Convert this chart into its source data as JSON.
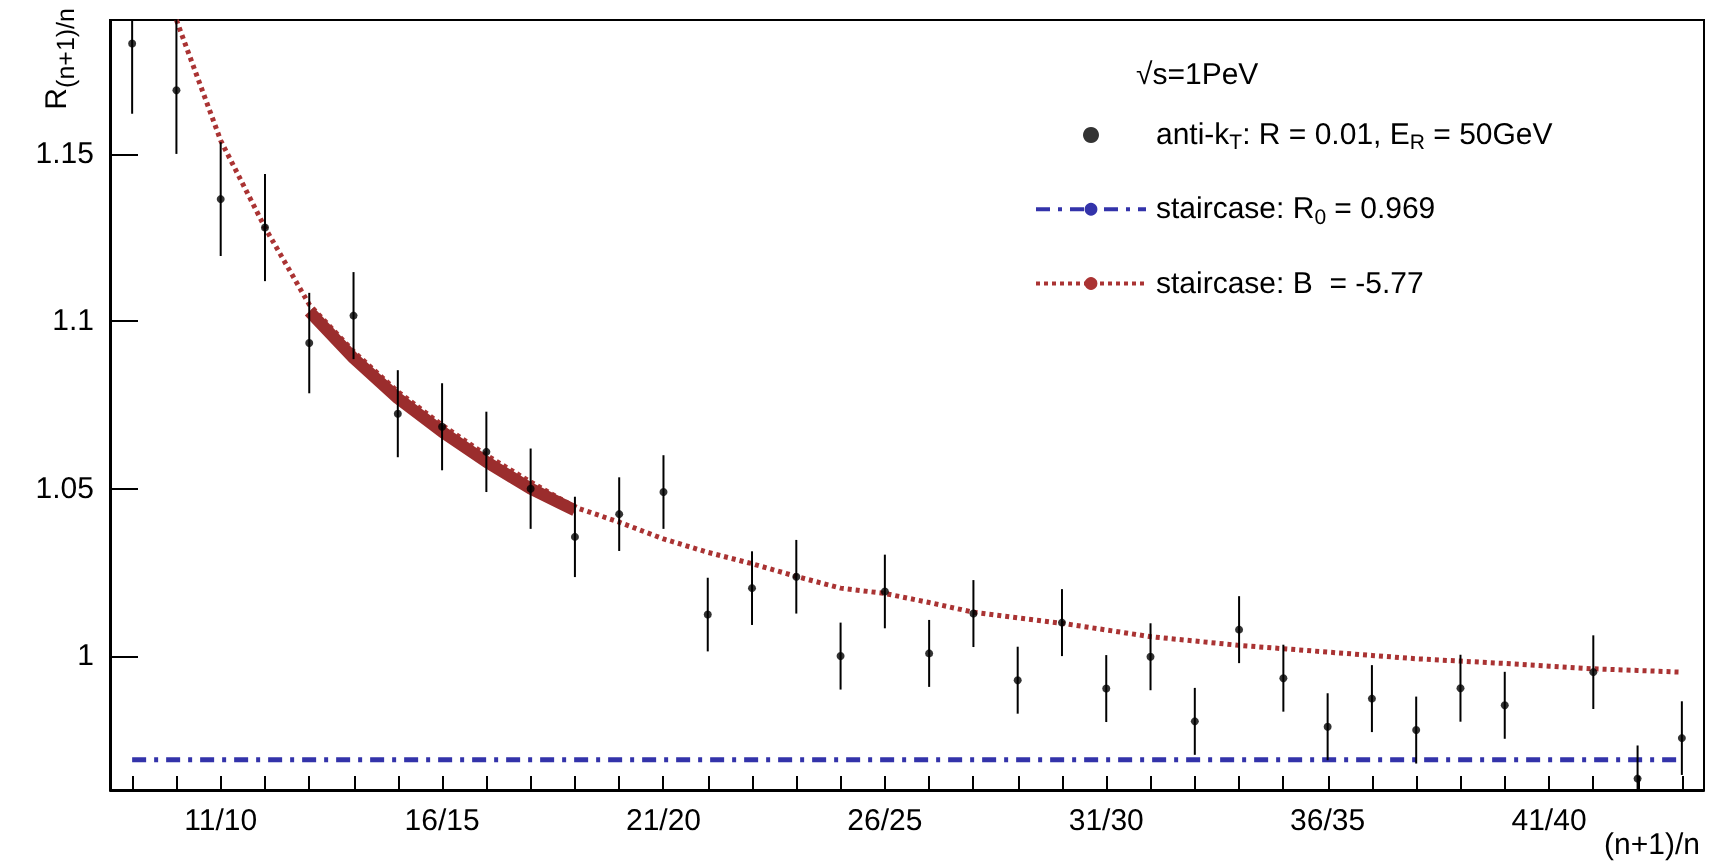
{
  "chart_data": {
    "type": "scatter",
    "xlabel": "(n+1)/n",
    "ylabel": "R$_{(n+1)/n}$",
    "legend_title": "√s=1PeV",
    "legend": "top right",
    "grid": false,
    "categories": [
      null,
      null,
      "11/10",
      null,
      null,
      null,
      null,
      "16/15",
      null,
      null,
      null,
      null,
      "21/20",
      null,
      null,
      null,
      null,
      "26/25",
      null,
      null,
      null,
      null,
      "31/30",
      null,
      null,
      null,
      null,
      "36/35",
      null,
      null,
      null,
      null,
      "41/40",
      null,
      null,
      null
    ],
    "ylim": [
      0.96,
      1.19
    ],
    "yticks": [
      1,
      1.05,
      1.1,
      1.15
    ],
    "series": [
      {
        "name": "anti-k$_{T}$: R = 0.01, E$_{R}$ = 50GeV",
        "color": "#000000",
        "marker": "circle",
        "values": [
          1.183,
          1.169,
          1.1365,
          1.128,
          1.0935,
          1.1017,
          1.0724,
          1.0685,
          1.061,
          1.05,
          1.0356,
          1.0424,
          1.049,
          1.0124,
          1.0203,
          1.0237,
          1.0,
          1.0193,
          1.0008,
          1.0127,
          0.9928,
          1.01,
          0.9903,
          0.9998,
          0.9805,
          1.0079,
          0.9934,
          0.9789,
          0.9873,
          0.9779,
          0.9904,
          0.9853,
          null,
          0.9952,
          0.9634,
          0.9755
        ],
        "errors": [
          [
            1.162,
            1.19
          ],
          [
            1.15,
            1.19
          ],
          0.017,
          0.016,
          0.015,
          0.013,
          0.013,
          0.013,
          0.012,
          0.012,
          0.012,
          0.011,
          0.011,
          0.011,
          0.011,
          0.011,
          0.01,
          0.011,
          0.01,
          0.01,
          0.01,
          0.01,
          0.01,
          0.01,
          0.01,
          0.01,
          0.01,
          0.01,
          0.01,
          0.01,
          0.01,
          0.01,
          null,
          0.011,
          [
            0.96,
            0.9733
          ],
          0.011
        ]
      },
      {
        "name": "staircase: R$_{0}$ = 0.969",
        "type": "line",
        "color": "#3333aa",
        "line_style": "dashed",
        "marker": "none",
        "values": [
          0.969,
          0.969,
          0.969,
          0.969,
          0.969,
          0.969,
          0.969,
          0.969,
          0.969,
          0.969,
          0.969,
          0.969,
          0.969,
          0.969,
          0.969,
          0.969,
          0.969,
          0.969,
          0.969,
          0.969,
          0.969,
          0.969,
          0.969,
          0.969,
          0.969,
          0.969,
          0.969,
          0.969,
          0.969,
          0.969,
          0.969,
          0.969,
          0.969,
          0.969,
          0.969,
          0.969
        ]
      },
      {
        "name": "staircase: B  = -5.77",
        "type": "line",
        "color": "#aa3333",
        "line_style": "dotted",
        "marker": "none",
        "values": [
          null,
          1.19,
          1.154,
          1.128,
          1.105,
          1.091,
          1.079,
          1.069,
          1.06,
          1.052,
          1.0445,
          1.04,
          1.035,
          1.031,
          1.0276,
          1.0238,
          1.0203,
          1.0187,
          1.016,
          1.0131,
          1.0114,
          1.0098,
          1.0078,
          1.0058,
          1.0045,
          1.0032,
          1.0022,
          1.0012,
          1.0002,
          0.9992,
          0.9985,
          0.9978,
          0.997,
          0.9962,
          0.9957,
          0.9952
        ]
      },
      {
        "type": "line",
        "color": "#9b2d2d",
        "line_style": "solid",
        "marker": "none",
        "values": [
          null,
          null,
          null,
          null,
          1.103,
          1.089,
          1.077,
          1.067,
          1.058,
          1.05,
          1.0435,
          null,
          null,
          null,
          null,
          null,
          null,
          null,
          null,
          null,
          null,
          null,
          null,
          null,
          null,
          null,
          null,
          null,
          null,
          null,
          null,
          null,
          null,
          null,
          null,
          null
        ]
      }
    ]
  }
}
